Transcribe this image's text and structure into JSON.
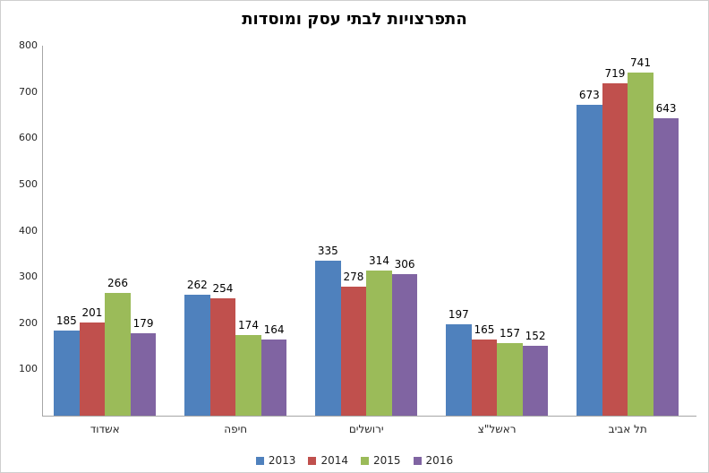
{
  "chart_data": {
    "type": "bar",
    "title": "התפרצויות לבתי עסק ומוסדות",
    "categories": [
      "אשדוד",
      "חיפה",
      "ירושלים",
      "ראשל\"צ",
      "תל אביב"
    ],
    "series": [
      {
        "name": "2013",
        "color": "#4F81BD",
        "values": [
          185,
          262,
          335,
          197,
          673
        ]
      },
      {
        "name": "2014",
        "color": "#C0504D",
        "values": [
          201,
          254,
          278,
          165,
          719
        ]
      },
      {
        "name": "2015",
        "color": "#9BBB59",
        "values": [
          266,
          174,
          314,
          157,
          741
        ]
      },
      {
        "name": "2016",
        "color": "#8064A2",
        "values": [
          179,
          164,
          306,
          152,
          643
        ]
      }
    ],
    "xlabel": "",
    "ylabel": "",
    "ylim": [
      0,
      800
    ],
    "yticks": [
      100,
      200,
      300,
      400,
      500,
      600,
      700,
      800
    ],
    "grid": false,
    "data_labels": true,
    "legend_position": "bottom",
    "axis_color": "#a6a6a6",
    "frame_border_color": "#cfcfcf"
  }
}
